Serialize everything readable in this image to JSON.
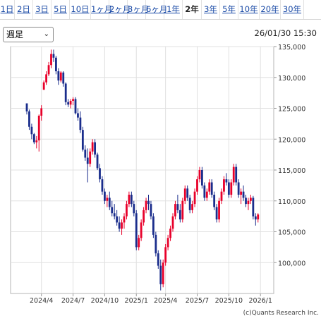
{
  "tabs": [
    {
      "label": "1日"
    },
    {
      "label": "2日"
    },
    {
      "label": "3日"
    },
    {
      "label": "5日"
    },
    {
      "label": "10日"
    },
    {
      "label": "1ヶ月"
    },
    {
      "label": "2ヶ月"
    },
    {
      "label": "3ヶ月"
    },
    {
      "label": "6ヶ月"
    },
    {
      "label": "1年"
    },
    {
      "label": "2年",
      "active": true
    },
    {
      "label": "3年"
    },
    {
      "label": "5年"
    },
    {
      "label": "10年"
    },
    {
      "label": "20年"
    },
    {
      "label": "30年"
    }
  ],
  "period_select": {
    "value": "週足"
  },
  "timestamp": "26/01/30 15:30",
  "credit": "(c)Quants Research Inc.",
  "colors": {
    "up": "#e8002a",
    "down": "#1a2d8c",
    "grid": "#e0e0e0",
    "axis": "#9a9a9a"
  },
  "chart_data": {
    "type": "candlestick",
    "interval": "weekly",
    "ylim": [
      95000,
      135000
    ],
    "y_ticks": [
      100000,
      105000,
      110000,
      115000,
      120000,
      125000,
      130000,
      135000
    ],
    "y_tick_labels": [
      "100,000",
      "105,000",
      "110,000",
      "115,000",
      "120,000",
      "125,000",
      "130,000",
      "135,000"
    ],
    "x_tick_labels": [
      {
        "label": "2024/4",
        "index": 6
      },
      {
        "label": "2024/7",
        "index": 19
      },
      {
        "label": "2024/10",
        "index": 32
      },
      {
        "label": "2025/1",
        "index": 45
      },
      {
        "label": "2025/4",
        "index": 57
      },
      {
        "label": "2025/7",
        "index": 70
      },
      {
        "label": "2025/10",
        "index": 83
      },
      {
        "label": "2026/1",
        "index": 96
      }
    ],
    "candles": [
      [
        125800,
        125800,
        124000,
        124500
      ],
      [
        124500,
        124800,
        121500,
        122000
      ],
      [
        122000,
        122500,
        120000,
        120800
      ],
      [
        120800,
        121000,
        119200,
        119500
      ],
      [
        119500,
        120500,
        118500,
        119800
      ],
      [
        119800,
        124000,
        118000,
        123800
      ],
      [
        123800,
        125500,
        123000,
        125000
      ],
      [
        128000,
        129500,
        128000,
        129200
      ],
      [
        129200,
        131000,
        128800,
        130500
      ],
      [
        130500,
        132500,
        130200,
        132000
      ],
      [
        132000,
        134500,
        131500,
        133800
      ],
      [
        133800,
        134500,
        132500,
        133200
      ],
      [
        133200,
        133500,
        130500,
        131000
      ],
      [
        131000,
        131500,
        128800,
        129500
      ],
      [
        129500,
        131000,
        129200,
        130800
      ],
      [
        130800,
        131000,
        128500,
        129000
      ],
      [
        129000,
        129200,
        125500,
        126000
      ],
      [
        126000,
        126500,
        125200,
        125600
      ],
      [
        125600,
        126500,
        125000,
        126200
      ],
      [
        126200,
        126800,
        125500,
        126500
      ],
      [
        126500,
        126800,
        124000,
        124200
      ],
      [
        124200,
        125000,
        123000,
        123500
      ],
      [
        123500,
        124500,
        121000,
        121500
      ],
      [
        121500,
        122000,
        118000,
        118300
      ],
      [
        118300,
        119000,
        116500,
        117000
      ],
      [
        117000,
        118500,
        113000,
        116000
      ],
      [
        116000,
        118500,
        115500,
        118000
      ],
      [
        118000,
        120000,
        117500,
        119500
      ],
      [
        119500,
        120000,
        117000,
        117500
      ],
      [
        117500,
        117800,
        115000,
        115300
      ],
      [
        115300,
        116000,
        113000,
        113500
      ],
      [
        113500,
        114000,
        111000,
        111500
      ],
      [
        111500,
        112000,
        109500,
        110000
      ],
      [
        110000,
        111000,
        109000,
        110500
      ],
      [
        110500,
        111500,
        108500,
        109000
      ],
      [
        109000,
        110000,
        107500,
        108000
      ],
      [
        108000,
        109500,
        107000,
        107500
      ],
      [
        107500,
        108500,
        106000,
        106500
      ],
      [
        106500,
        107500,
        105000,
        105500
      ],
      [
        105500,
        107000,
        104500,
        106500
      ],
      [
        106500,
        108000,
        105500,
        107500
      ],
      [
        107500,
        110000,
        107000,
        109500
      ],
      [
        109500,
        111500,
        109000,
        111000
      ],
      [
        111000,
        111500,
        109000,
        109500
      ],
      [
        109500,
        110000,
        107500,
        108000
      ],
      [
        108000,
        108500,
        102000,
        102500
      ],
      [
        102500,
        104500,
        102000,
        104000
      ],
      [
        104000,
        107000,
        103500,
        106500
      ],
      [
        106500,
        109000,
        106000,
        108500
      ],
      [
        108500,
        110500,
        108000,
        110000
      ],
      [
        110000,
        111000,
        108500,
        109500
      ],
      [
        109500,
        110000,
        107000,
        107500
      ],
      [
        107500,
        108000,
        104000,
        104500
      ],
      [
        104500,
        105000,
        101000,
        101500
      ],
      [
        101500,
        102000,
        99000,
        99500
      ],
      [
        99500,
        100500,
        95500,
        96500
      ],
      [
        96500,
        100500,
        96000,
        100000
      ],
      [
        100000,
        103000,
        99500,
        102500
      ],
      [
        102500,
        104500,
        102000,
        104000
      ],
      [
        104000,
        106000,
        103500,
        105500
      ],
      [
        105500,
        108000,
        105000,
        107500
      ],
      [
        107500,
        110000,
        107000,
        109500
      ],
      [
        109500,
        111000,
        108000,
        108500
      ],
      [
        108500,
        109500,
        106500,
        107000
      ],
      [
        107000,
        110500,
        106500,
        110000
      ],
      [
        110000,
        112500,
        109500,
        112000
      ],
      [
        112000,
        112500,
        110000,
        110500
      ],
      [
        110500,
        111000,
        108000,
        108500
      ],
      [
        108500,
        110000,
        108000,
        109500
      ],
      [
        109500,
        112000,
        109000,
        111500
      ],
      [
        111500,
        114000,
        111000,
        113500
      ],
      [
        113500,
        115500,
        113000,
        115000
      ],
      [
        115000,
        115500,
        112000,
        112500
      ],
      [
        112500,
        113000,
        110000,
        110500
      ],
      [
        110500,
        112000,
        110000,
        111500
      ],
      [
        111500,
        113500,
        111000,
        113000
      ],
      [
        113000,
        113500,
        110500,
        111000
      ],
      [
        111000,
        111500,
        108500,
        109000
      ],
      [
        109000,
        109500,
        106500,
        107000
      ],
      [
        107000,
        110500,
        106500,
        110000
      ],
      [
        110000,
        112000,
        109500,
        111500
      ],
      [
        111500,
        114000,
        111000,
        113500
      ],
      [
        113500,
        114500,
        112500,
        113000
      ],
      [
        113000,
        113500,
        110500,
        111000
      ],
      [
        111000,
        113500,
        110500,
        113000
      ],
      [
        113000,
        116000,
        112500,
        115500
      ],
      [
        115500,
        116000,
        112500,
        113000
      ],
      [
        113000,
        113500,
        110500,
        111000
      ],
      [
        111000,
        112000,
        109500,
        111500
      ],
      [
        111500,
        112500,
        110000,
        110500
      ],
      [
        110500,
        111000,
        109000,
        109500
      ],
      [
        109500,
        110500,
        108500,
        110000
      ],
      [
        110000,
        111000,
        109500,
        110500
      ],
      [
        110500,
        110800,
        107000,
        107500
      ],
      [
        107500,
        108000,
        106000,
        107000
      ],
      [
        107000,
        108000,
        106500,
        107800
      ]
    ]
  }
}
